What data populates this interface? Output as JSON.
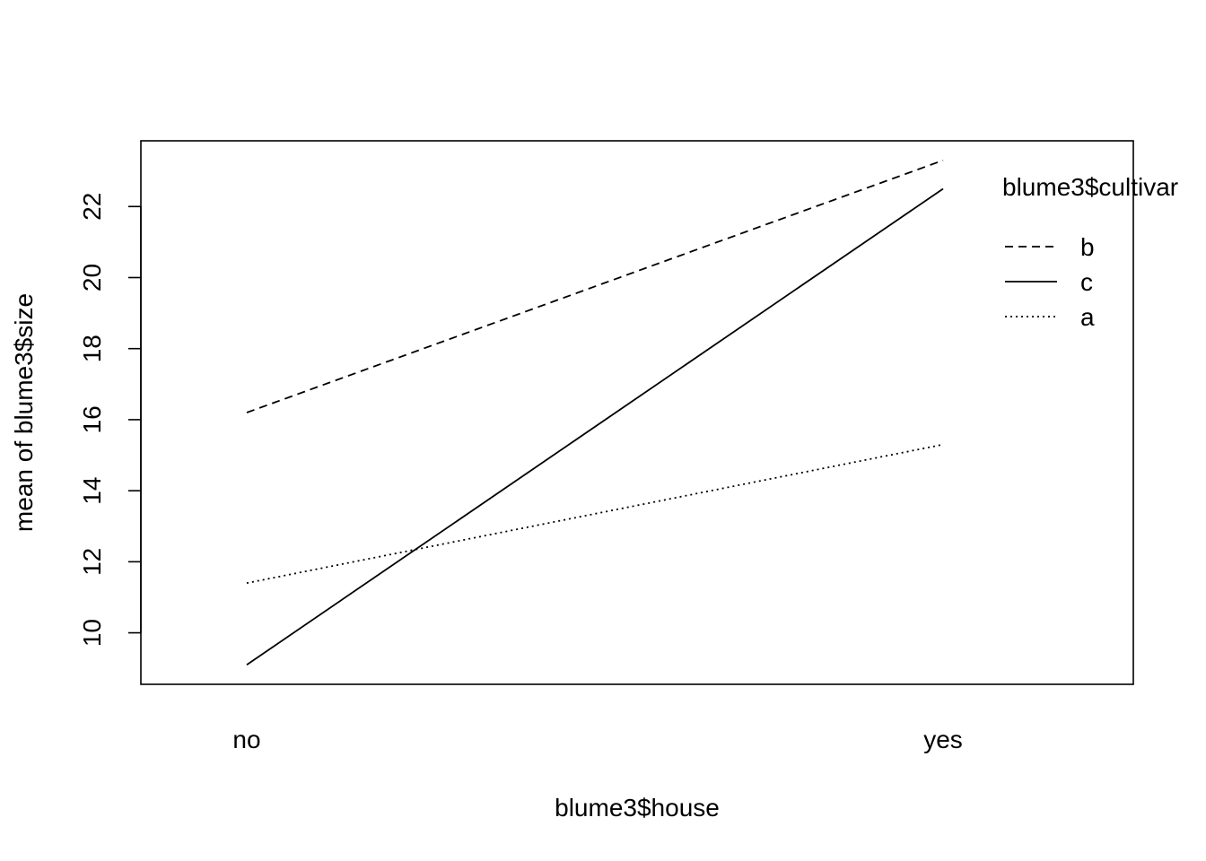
{
  "chart_data": {
    "type": "line",
    "title": "",
    "xlabel": "blume3$house",
    "ylabel": "mean of  blume3$size",
    "categories": [
      "no",
      "yes"
    ],
    "yticks": [
      10,
      12,
      14,
      16,
      18,
      20,
      22
    ],
    "ylim": [
      8.55,
      23.85
    ],
    "grid": false,
    "legend": {
      "title": "blume3$cultivar",
      "placement": "top-right",
      "order": [
        "b",
        "c",
        "a"
      ]
    },
    "series": [
      {
        "name": "b",
        "style": "dashed",
        "values": [
          16.2,
          23.3
        ]
      },
      {
        "name": "c",
        "style": "solid",
        "values": [
          9.1,
          22.5
        ]
      },
      {
        "name": "a",
        "style": "dotted",
        "values": [
          11.4,
          15.3
        ]
      }
    ],
    "colors": {
      "line": "#000000",
      "background": "#ffffff"
    }
  }
}
